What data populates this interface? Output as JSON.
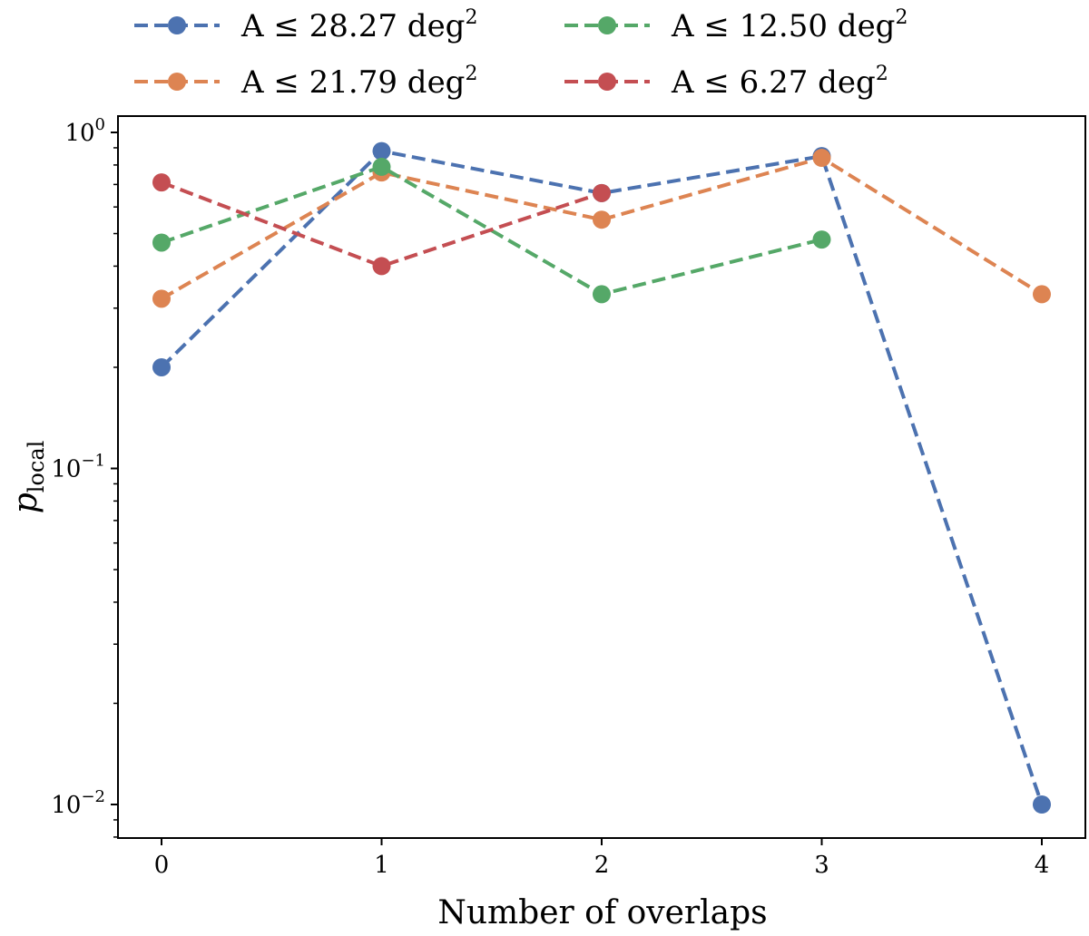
{
  "chart_data": {
    "type": "line",
    "title": "",
    "xlabel": "Number of overlaps",
    "ylabel_main": "p",
    "ylabel_sub": "local",
    "yscale": "log",
    "ylim": [
      0.008,
      1.1
    ],
    "xlim": [
      -0.2,
      4.2
    ],
    "x_ticks": [
      0,
      1,
      2,
      3,
      4
    ],
    "y_ticks": [
      {
        "value": 1,
        "base": "10",
        "exp": "0"
      },
      {
        "value": 0.1,
        "base": "10",
        "exp": "−1"
      },
      {
        "value": 0.01,
        "base": "10",
        "exp": "−2"
      }
    ],
    "grid": false,
    "legend_position": "top",
    "series": [
      {
        "name": "A ≤ 28.27 deg",
        "name_sup": "2",
        "color": "#4c72b0",
        "x": [
          0,
          1,
          2,
          3,
          4
        ],
        "values": [
          0.2,
          0.88,
          0.66,
          0.85,
          0.01
        ]
      },
      {
        "name": "A ≤ 21.79 deg",
        "name_sup": "2",
        "color": "#dd8452",
        "x": [
          0,
          1,
          2,
          3,
          4
        ],
        "values": [
          0.32,
          0.76,
          0.55,
          0.84,
          0.33
        ]
      },
      {
        "name": "A ≤ 12.50 deg",
        "name_sup": "2",
        "color": "#55a868",
        "x": [
          0,
          1,
          2,
          3
        ],
        "values": [
          0.47,
          0.79,
          0.33,
          0.48
        ]
      },
      {
        "name": "A ≤ 6.27 deg",
        "name_sup": "2",
        "color": "#c44e52",
        "x": [
          0,
          1,
          2
        ],
        "values": [
          0.71,
          0.4,
          0.66
        ]
      }
    ]
  }
}
